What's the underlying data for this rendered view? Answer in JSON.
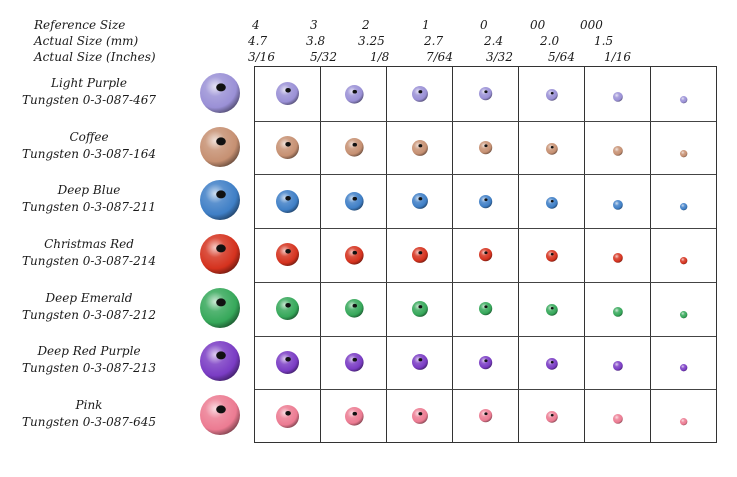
{
  "header": {
    "labels": [
      "Reference Size",
      "Actual Size (mm)",
      "Actual Size (Inches)"
    ],
    "reference_sizes": [
      "4",
      "3",
      "2",
      "1",
      "0",
      "00",
      "000"
    ],
    "actual_mm": [
      "4.7",
      "3.8",
      "3.25",
      "2.7",
      "2.4",
      "2.0",
      "1.5"
    ],
    "actual_inches": [
      "3/16",
      "5/32",
      "1/8",
      "7/64",
      "3/32",
      "5/64",
      "1/16"
    ]
  },
  "bead_diameters_mm": [
    4.7,
    3.8,
    3.25,
    2.7,
    2.4,
    2.0,
    1.5
  ],
  "rows": [
    {
      "name": "Light Purple",
      "code": "Tungsten 0-3-087-467",
      "color": "#9a90d6"
    },
    {
      "name": "Coffee",
      "code": "Tungsten  0-3-087-164",
      "color": "#c69072"
    },
    {
      "name": "Deep Blue",
      "code": "Tungsten 0-3-087-211",
      "color": "#3f7fc6"
    },
    {
      "name": "Christmas Red",
      "code": "Tungsten  0-3-087-214",
      "color": "#d5321e"
    },
    {
      "name": "Deep Emerald",
      "code": "Tungsten  0-3-087-212",
      "color": "#36a85a"
    },
    {
      "name": "Deep Red Purple",
      "code": "Tungsten  0-3-087-213",
      "color": "#7a3cc4"
    },
    {
      "name": "Pink",
      "code": "Tungsten  0-3-087-645",
      "color": "#ec7b92"
    }
  ]
}
